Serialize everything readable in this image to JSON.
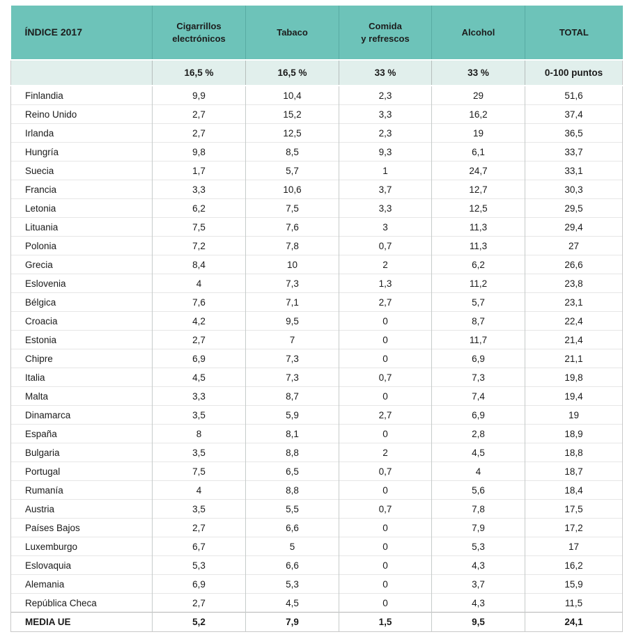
{
  "colors": {
    "header_bg": "#6dc3b9",
    "header_divider": "#58aba3",
    "subheader_bg": "#e1efec",
    "body_divider": "#c6cbca",
    "row_separator": "#e6e6e6",
    "table_border": "#c9c9c9",
    "text": "#1a1a1a"
  },
  "chart_data": {
    "type": "table",
    "title": "ÍNDICE 2017",
    "columns": [
      "ÍNDICE 2017",
      "Cigarrillos\nelectrónicos",
      "Tabaco",
      "Comida\ny refrescos",
      "Alcohol",
      "TOTAL"
    ],
    "weights_row": [
      "",
      "16,5 %",
      "16,5 %",
      "33 %",
      "33 %",
      "0-100 puntos"
    ],
    "rows": [
      [
        "Finlandia",
        "9,9",
        "10,4",
        "2,3",
        "29",
        "51,6"
      ],
      [
        "Reino Unido",
        "2,7",
        "15,2",
        "3,3",
        "16,2",
        "37,4"
      ],
      [
        "Irlanda",
        "2,7",
        "12,5",
        "2,3",
        "19",
        "36,5"
      ],
      [
        "Hungría",
        "9,8",
        "8,5",
        "9,3",
        "6,1",
        "33,7"
      ],
      [
        "Suecia",
        "1,7",
        "5,7",
        "1",
        "24,7",
        "33,1"
      ],
      [
        "Francia",
        "3,3",
        "10,6",
        "3,7",
        "12,7",
        "30,3"
      ],
      [
        "Letonia",
        "6,2",
        "7,5",
        "3,3",
        "12,5",
        "29,5"
      ],
      [
        "Lituania",
        "7,5",
        "7,6",
        "3",
        "11,3",
        "29,4"
      ],
      [
        "Polonia",
        "7,2",
        "7,8",
        "0,7",
        "11,3",
        "27"
      ],
      [
        "Grecia",
        "8,4",
        "10",
        "2",
        "6,2",
        "26,6"
      ],
      [
        "Eslovenia",
        "4",
        "7,3",
        "1,3",
        "11,2",
        "23,8"
      ],
      [
        "Bélgica",
        "7,6",
        "7,1",
        "2,7",
        "5,7",
        "23,1"
      ],
      [
        "Croacia",
        "4,2",
        "9,5",
        "0",
        "8,7",
        "22,4"
      ],
      [
        "Estonia",
        "2,7",
        "7",
        "0",
        "11,7",
        "21,4"
      ],
      [
        "Chipre",
        "6,9",
        "7,3",
        "0",
        "6,9",
        "21,1"
      ],
      [
        "Italia",
        "4,5",
        "7,3",
        "0,7",
        "7,3",
        "19,8"
      ],
      [
        "Malta",
        "3,3",
        "8,7",
        "0",
        "7,4",
        "19,4"
      ],
      [
        "Dinamarca",
        "3,5",
        "5,9",
        "2,7",
        "6,9",
        "19"
      ],
      [
        "España",
        "8",
        "8,1",
        "0",
        "2,8",
        "18,9"
      ],
      [
        "Bulgaria",
        "3,5",
        "8,8",
        "2",
        "4,5",
        "18,8"
      ],
      [
        "Portugal",
        "7,5",
        "6,5",
        "0,7",
        "4",
        "18,7"
      ],
      [
        "Rumanía",
        "4",
        "8,8",
        "0",
        "5,6",
        "18,4"
      ],
      [
        "Austria",
        "3,5",
        "5,5",
        "0,7",
        "7,8",
        "17,5"
      ],
      [
        "Países Bajos",
        "2,7",
        "6,6",
        "0",
        "7,9",
        "17,2"
      ],
      [
        "Luxemburgo",
        "6,7",
        "5",
        "0",
        "5,3",
        "17"
      ],
      [
        "Eslovaquia",
        "5,3",
        "6,6",
        "0",
        "4,3",
        "16,2"
      ],
      [
        "Alemania",
        "6,9",
        "5,3",
        "0",
        "3,7",
        "15,9"
      ],
      [
        "República Checa",
        "2,7",
        "4,5",
        "0",
        "4,3",
        "11,5"
      ]
    ],
    "footer_row": [
      "MEDIA UE",
      "5,2",
      "7,9",
      "1,5",
      "9,5",
      "24,1"
    ]
  }
}
